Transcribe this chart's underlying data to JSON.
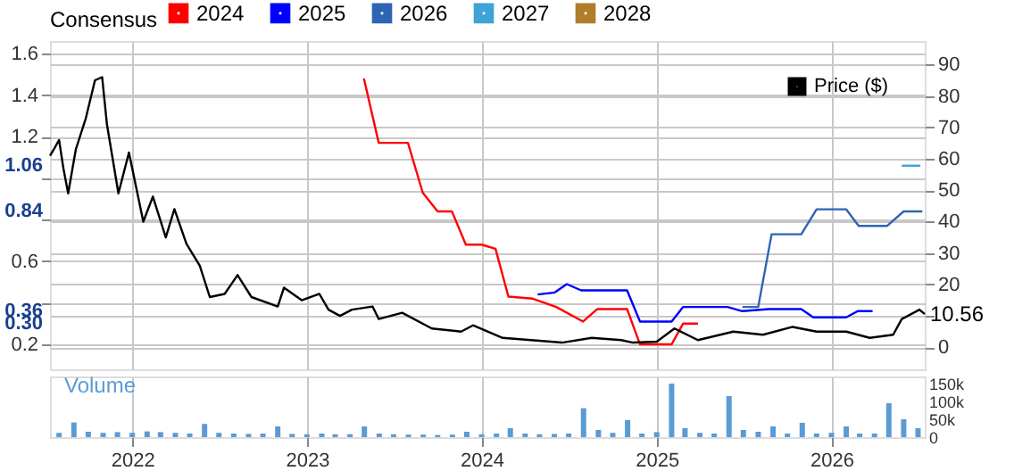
{
  "chart_data": {
    "type": "line",
    "legend_title": "Consensus",
    "legend": "top right",
    "grid": true,
    "xlim": [
      "2021-07-13",
      "2026-07-15"
    ],
    "xticks": [
      "2022",
      "2023",
      "2024",
      "2025",
      "2026"
    ],
    "ylim": [
      0.08,
      1.66
    ],
    "yticks": [
      {
        "value": 0.2,
        "label": "0.2"
      },
      {
        "value": 0.4,
        "label": null
      },
      {
        "value": 0.6,
        "label": "0.6"
      },
      {
        "value": 0.8,
        "label": null
      },
      {
        "value": 1.0,
        "label": null
      },
      {
        "value": 1.2,
        "label": "1.2"
      },
      {
        "value": 1.4,
        "label": "1.4"
      },
      {
        "value": 1.6,
        "label": "1.6"
      }
    ],
    "y2lim": [
      -7,
      97.5
    ],
    "y2ticks": [
      0,
      {
        "value": 10,
        "label": null
      },
      20,
      30,
      40,
      50,
      60,
      70,
      80,
      90
    ],
    "y3lim": [
      0,
      170000
    ],
    "y3ticks": [
      0,
      {
        "value": 50000,
        "label": "50k"
      },
      {
        "value": 100000,
        "label": "100k"
      },
      {
        "value": 150000,
        "label": "150k"
      }
    ],
    "annotations": [
      "1.06",
      "0.84",
      "0.36",
      "0.30"
    ],
    "series": [
      {
        "name": "2024",
        "color": "#ff0000",
        "x": [
          "2023-04-30",
          "2023-05-31",
          "2023-07-31",
          "2023-08-31",
          "2023-10-01",
          "2023-10-31",
          "2023-11-29",
          "2024-01-01",
          "2024-01-30",
          "2024-02-26",
          "2024-04-17",
          "2024-06-05",
          "2024-07-31",
          "2024-08-30",
          "2024-10-31",
          "2024-11-27",
          "2025-02-01",
          "2025-02-25",
          "2025-03-28"
        ],
        "values": [
          1.48,
          1.17,
          1.17,
          0.93,
          0.84,
          0.84,
          0.68,
          0.68,
          0.66,
          0.43,
          0.42,
          0.38,
          0.31,
          0.37,
          0.37,
          0.2,
          0.2,
          0.3,
          0.3
        ]
      },
      {
        "name": "2025",
        "color": "#0000ff",
        "x": [
          "2024-04-27",
          "2024-06-02",
          "2024-06-27",
          "2024-07-27",
          "2024-10-31",
          "2024-11-27",
          "2025-02-01",
          "2025-02-25",
          "2025-05-29",
          "2025-06-29",
          "2025-08-23",
          "2025-10-30",
          "2025-11-24",
          "2026-02-01",
          "2026-02-25",
          "2026-03-28"
        ],
        "values": [
          0.44,
          0.45,
          0.49,
          0.46,
          0.46,
          0.31,
          0.31,
          0.38,
          0.38,
          0.36,
          0.37,
          0.37,
          0.33,
          0.33,
          0.36,
          0.36
        ]
      },
      {
        "name": "2026",
        "color": "#2d64b4",
        "x": [
          "2025-06-29",
          "2025-08-01",
          "2025-08-29",
          "2025-10-30",
          "2025-12-01",
          "2026-02-01",
          "2026-02-27",
          "2026-04-27",
          "2026-06-01",
          "2026-07-10"
        ],
        "values": [
          0.38,
          0.38,
          0.73,
          0.73,
          0.85,
          0.85,
          0.77,
          0.77,
          0.84,
          0.84
        ]
      },
      {
        "name": "2027",
        "color": "#3ea3d6",
        "x": [
          "2026-05-28",
          "2026-07-06"
        ],
        "values": [
          1.06,
          1.06
        ]
      },
      {
        "name": "2028",
        "color": "#b07d2b"
      },
      {
        "name": "Price ($)",
        "color": "#000000",
        "axis": "y2",
        "x": [
          "2021-07-13",
          "2021-07-21",
          "2021-08-01",
          "2021-08-10",
          "2021-08-20",
          "2021-09-05",
          "2021-09-26",
          "2021-10-15",
          "2021-10-30",
          "2021-11-09",
          "2021-12-03",
          "2021-12-25",
          "2022-01-09",
          "2022-01-24",
          "2022-02-13",
          "2022-03-12",
          "2022-03-30",
          "2022-04-24",
          "2022-05-22",
          "2022-06-12",
          "2022-07-13",
          "2022-08-09",
          "2022-09-07",
          "2022-11-01",
          "2022-11-14",
          "2022-12-21",
          "2023-01-27",
          "2023-02-15",
          "2023-03-11",
          "2023-04-05",
          "2023-05-18",
          "2023-05-31",
          "2023-07-19",
          "2023-09-19",
          "2023-11-19",
          "2023-12-14",
          "2024-02-14",
          "2024-06-17",
          "2024-08-18",
          "2024-10-19",
          "2024-11-12",
          "2025-01-01",
          "2025-02-07",
          "2025-03-28",
          "2025-06-10",
          "2025-08-11",
          "2025-10-12",
          "2025-12-01",
          "2026-02-01",
          "2026-03-22",
          "2026-05-10",
          "2026-05-28",
          "2026-07-04",
          "2026-07-15"
        ],
        "values": [
          61,
          63,
          66,
          57,
          49,
          63,
          73,
          85,
          86,
          71,
          49,
          62,
          51,
          40,
          48,
          35,
          44,
          33,
          26,
          16,
          17,
          23,
          16,
          13,
          19,
          15,
          17,
          12,
          10,
          12,
          13,
          9,
          11,
          6,
          5,
          7,
          3,
          1.5,
          3,
          2.3,
          1.5,
          1.8,
          6,
          2.3,
          5,
          4,
          6.5,
          5,
          5,
          3,
          4,
          9,
          12,
          10.56
        ],
        "value_labels": [
          null,
          null,
          null,
          null,
          null,
          null,
          null,
          null,
          null,
          null,
          null,
          null,
          null,
          null,
          null,
          null,
          null,
          null,
          null,
          null,
          null,
          null,
          null,
          null,
          null,
          null,
          null,
          null,
          null,
          null,
          null,
          null,
          null,
          null,
          null,
          null,
          null,
          null,
          null,
          null,
          null,
          null,
          null,
          null,
          null,
          null,
          null,
          null,
          null,
          null,
          null,
          null,
          null,
          "10.56"
        ]
      },
      {
        "name": "Volume",
        "type": "bar",
        "color": "#5b9bd5",
        "axis": "y3",
        "x": [
          "2021-08",
          "2021-09",
          "2021-10",
          "2021-11",
          "2021-12",
          "2022-01",
          "2022-02",
          "2022-03",
          "2022-04",
          "2022-05",
          "2022-06",
          "2022-07",
          "2022-08",
          "2022-09",
          "2022-10",
          "2022-11",
          "2022-12",
          "2023-01",
          "2023-02",
          "2023-03",
          "2023-04",
          "2023-05",
          "2023-06",
          "2023-07",
          "2023-08",
          "2023-09",
          "2023-10",
          "2023-11",
          "2023-12",
          "2024-01",
          "2024-02",
          "2024-03",
          "2024-04",
          "2024-05",
          "2024-06",
          "2024-07",
          "2024-08",
          "2024-09",
          "2024-10",
          "2024-11",
          "2024-12",
          "2025-01",
          "2025-02",
          "2025-03",
          "2025-04",
          "2025-05",
          "2025-06",
          "2025-07",
          "2025-08",
          "2025-09",
          "2025-10",
          "2025-11",
          "2025-12",
          "2026-01",
          "2026-02",
          "2026-03",
          "2026-04",
          "2026-05",
          "2026-06",
          "2026-07"
        ],
        "values": [
          12000,
          41000,
          15000,
          12000,
          14000,
          12000,
          16000,
          14000,
          12000,
          10000,
          37000,
          12000,
          10000,
          9000,
          10000,
          30000,
          9000,
          8000,
          10000,
          8000,
          8000,
          30000,
          10000,
          8000,
          7000,
          7000,
          6000,
          7000,
          15000,
          8000,
          10000,
          25000,
          10000,
          8000,
          9000,
          10000,
          81000,
          20000,
          12000,
          48000,
          10000,
          14000,
          150000,
          25000,
          12000,
          10000,
          115000,
          20000,
          15000,
          30000,
          10000,
          40000,
          10000,
          12000,
          30000,
          10000,
          10000,
          95000,
          50000,
          25000
        ]
      }
    ]
  }
}
